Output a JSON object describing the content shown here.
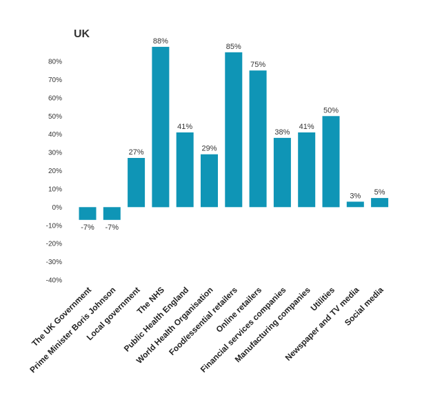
{
  "chart_data": {
    "type": "bar",
    "title": "UK",
    "xlabel": "",
    "ylabel": "",
    "ylim": [
      -40,
      80
    ],
    "yticks": [
      "-40%",
      "-30%",
      "-20%",
      "-10%",
      "0%",
      "10%",
      "20%",
      "30%",
      "40%",
      "50%",
      "60%",
      "70%",
      "80%"
    ],
    "grid": false,
    "legend": "none",
    "bar_color": "#0f95b6",
    "categories": [
      "The UK Government",
      "Prime Minister Boris Johnson",
      "Local government",
      "The NHS",
      "Public Health England",
      "World Health Organisation",
      "Food/essential retailers",
      "Online retailers",
      "Financial services companies",
      "Manufacturing companies",
      "Utilities",
      "Newspaper and TV media",
      "Social media"
    ],
    "values": [
      -7,
      -7,
      27,
      88,
      41,
      29,
      85,
      75,
      38,
      41,
      50,
      3,
      5
    ],
    "data_labels": [
      "-7%",
      "-7%",
      "27%",
      "88%",
      "41%",
      "29%",
      "85%",
      "75%",
      "38%",
      "41%",
      "50%",
      "3%",
      "5%"
    ]
  }
}
